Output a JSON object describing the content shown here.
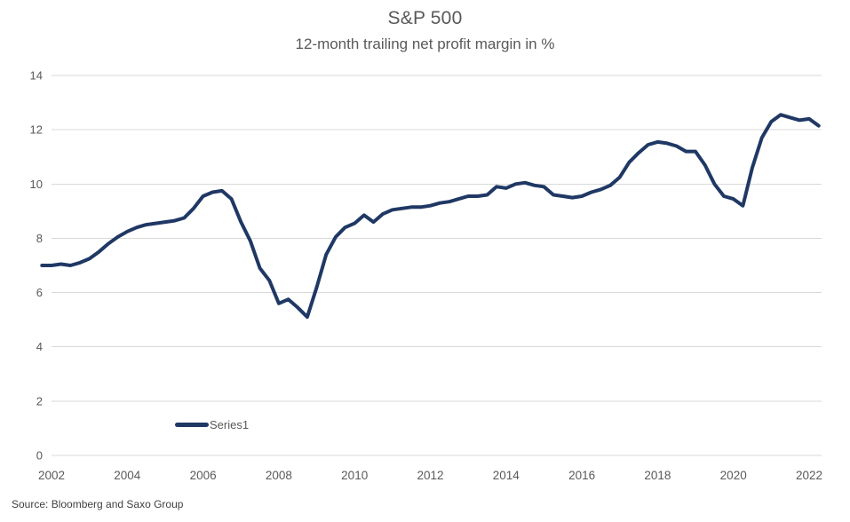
{
  "header": {
    "title": "S&P 500",
    "subtitle": "12-month trailing net profit margin in %"
  },
  "source": {
    "text": "Source: Bloomberg and Saxo Group"
  },
  "colors": {
    "line": "#1f3864",
    "grid": "#d9d9d9",
    "axis_text": "#595959",
    "title_text": "#595959",
    "source_text": "#404040",
    "background": "#ffffff"
  },
  "chart_data": {
    "type": "line",
    "title": "S&P 500",
    "subtitle": "12-month trailing net profit margin in %",
    "xlabel": "",
    "ylabel": "",
    "ylim": [
      0,
      14
    ],
    "y_ticks": [
      0,
      2,
      4,
      6,
      8,
      10,
      12,
      14
    ],
    "x_ticks": [
      2002,
      2004,
      2006,
      2008,
      2010,
      2012,
      2014,
      2016,
      2018,
      2020,
      2022
    ],
    "grid": "horizontal-only",
    "legend_position": "inside-bottom-left",
    "source": "Source: Bloomberg and Saxo Group",
    "series": [
      {
        "name": "Series1",
        "color": "#1f3864",
        "x": [
          2001.75,
          2002,
          2002.25,
          2002.5,
          2002.75,
          2003,
          2003.25,
          2003.5,
          2003.75,
          2004,
          2004.25,
          2004.5,
          2004.75,
          2005,
          2005.25,
          2005.5,
          2005.75,
          2006,
          2006.25,
          2006.5,
          2006.75,
          2007,
          2007.25,
          2007.5,
          2007.75,
          2008,
          2008.25,
          2008.5,
          2008.75,
          2009,
          2009.25,
          2009.5,
          2009.75,
          2010,
          2010.25,
          2010.5,
          2010.75,
          2011,
          2011.25,
          2011.5,
          2011.75,
          2012,
          2012.25,
          2012.5,
          2012.75,
          2013,
          2013.25,
          2013.5,
          2013.75,
          2014,
          2014.25,
          2014.5,
          2014.75,
          2015,
          2015.25,
          2015.5,
          2015.75,
          2016,
          2016.25,
          2016.5,
          2016.75,
          2017,
          2017.25,
          2017.5,
          2017.75,
          2018,
          2018.25,
          2018.5,
          2018.75,
          2019,
          2019.25,
          2019.5,
          2019.75,
          2020,
          2020.25,
          2020.5,
          2020.75,
          2021,
          2021.25,
          2021.5,
          2021.75,
          2022,
          2022.25
        ],
        "values": [
          7.0,
          7.0,
          7.05,
          7.0,
          7.1,
          7.25,
          7.5,
          7.8,
          8.05,
          8.25,
          8.4,
          8.5,
          8.55,
          8.6,
          8.65,
          8.75,
          9.1,
          9.55,
          9.7,
          9.75,
          9.45,
          8.6,
          7.9,
          6.9,
          6.45,
          5.6,
          5.75,
          5.45,
          5.1,
          6.2,
          7.4,
          8.05,
          8.4,
          8.55,
          8.85,
          8.6,
          8.9,
          9.05,
          9.1,
          9.15,
          9.15,
          9.2,
          9.3,
          9.35,
          9.45,
          9.55,
          9.55,
          9.6,
          9.9,
          9.85,
          10.0,
          10.05,
          9.95,
          9.9,
          9.6,
          9.55,
          9.5,
          9.55,
          9.7,
          9.8,
          9.95,
          10.25,
          10.8,
          11.15,
          11.45,
          11.55,
          11.5,
          11.4,
          11.2,
          11.2,
          10.7,
          10.0,
          9.55,
          9.45,
          9.2,
          10.6,
          11.7,
          12.3,
          12.55,
          12.45,
          12.35,
          12.4,
          12.15
        ]
      }
    ]
  }
}
